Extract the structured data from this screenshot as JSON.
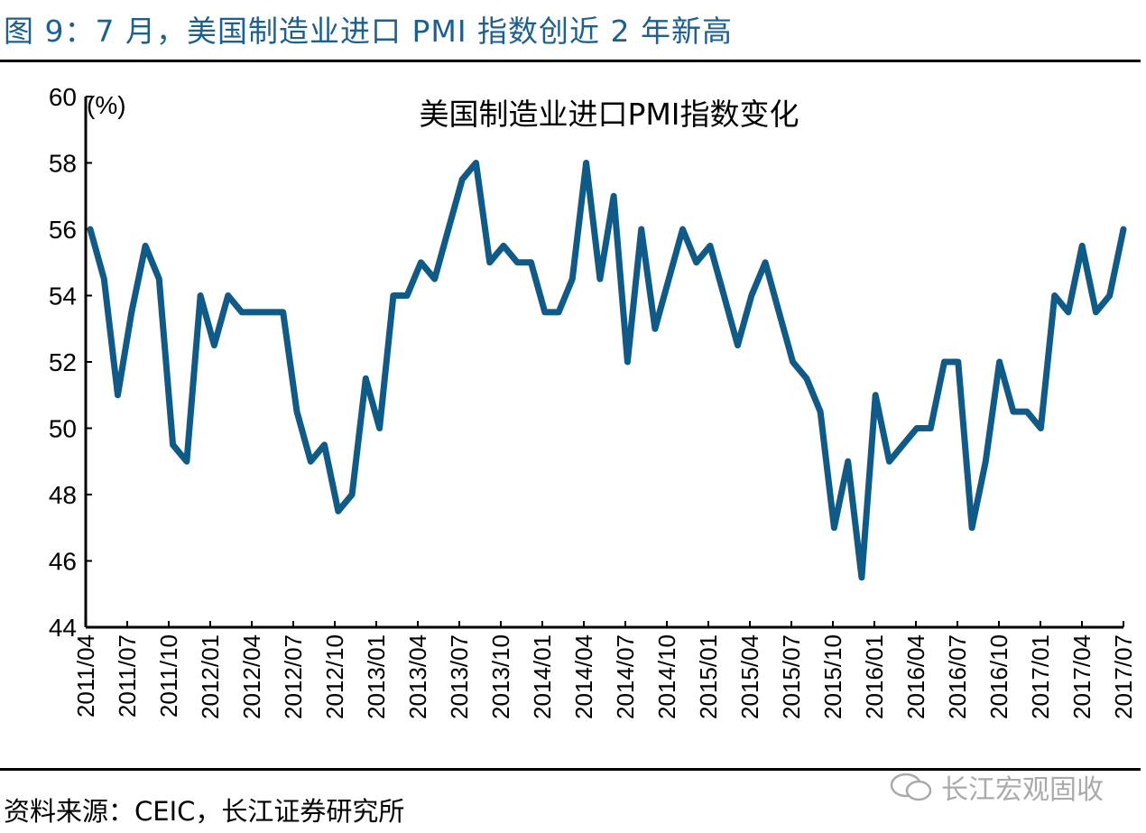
{
  "figure_title": "图 9：7 月，美国制造业进口 PMI 指数创近 2 年新高",
  "source": "资料来源：CEIC，长江证券研究所",
  "watermark": {
    "text": "长江宏观固收",
    "icon": "wechat-icon"
  },
  "colors": {
    "line": "#0f5a87",
    "title": "#1d5f8e"
  },
  "chart_data": {
    "type": "line",
    "title": "美国制造业进口PMI指数变化",
    "ylabel": "(%)",
    "xlabel": "",
    "ylim": [
      44,
      60
    ],
    "yticks": [
      44,
      46,
      48,
      50,
      52,
      54,
      56,
      58,
      60
    ],
    "grid": false,
    "xtick_labels": [
      "2011/04",
      "2011/07",
      "2011/10",
      "2012/01",
      "2012/04",
      "2012/07",
      "2012/10",
      "2013/01",
      "2013/04",
      "2013/07",
      "2013/10",
      "2014/01",
      "2014/04",
      "2014/07",
      "2014/10",
      "2015/01",
      "2015/04",
      "2015/07",
      "2015/10",
      "2016/01",
      "2016/04",
      "2016/07",
      "2016/10",
      "2017/01",
      "2017/04",
      "2017/07"
    ],
    "x_start": "2011/04",
    "x_end": "2017/07",
    "frequency": "monthly",
    "series": [
      {
        "values": [
          56,
          54.5,
          51,
          53.5,
          55.5,
          54.5,
          49.5,
          49,
          54,
          52.5,
          54,
          53.5,
          53.5,
          53.5,
          53.5,
          50.5,
          49,
          49.5,
          47.5,
          48,
          51.5,
          50,
          54,
          54,
          55,
          54.5,
          56,
          57.5,
          58,
          55,
          55.5,
          55,
          55,
          53.5,
          53.5,
          54.5,
          58,
          54.5,
          57,
          52,
          56,
          53,
          54.5,
          56,
          55,
          55.5,
          54,
          52.5,
          54,
          55,
          53.5,
          52,
          51.5,
          50.5,
          47,
          49,
          45.5,
          51,
          49,
          49.5,
          50,
          50,
          52,
          52,
          47,
          49,
          52,
          50.5,
          50.5,
          50,
          54,
          53.5,
          55.5,
          53.5,
          54,
          56
        ]
      }
    ]
  }
}
